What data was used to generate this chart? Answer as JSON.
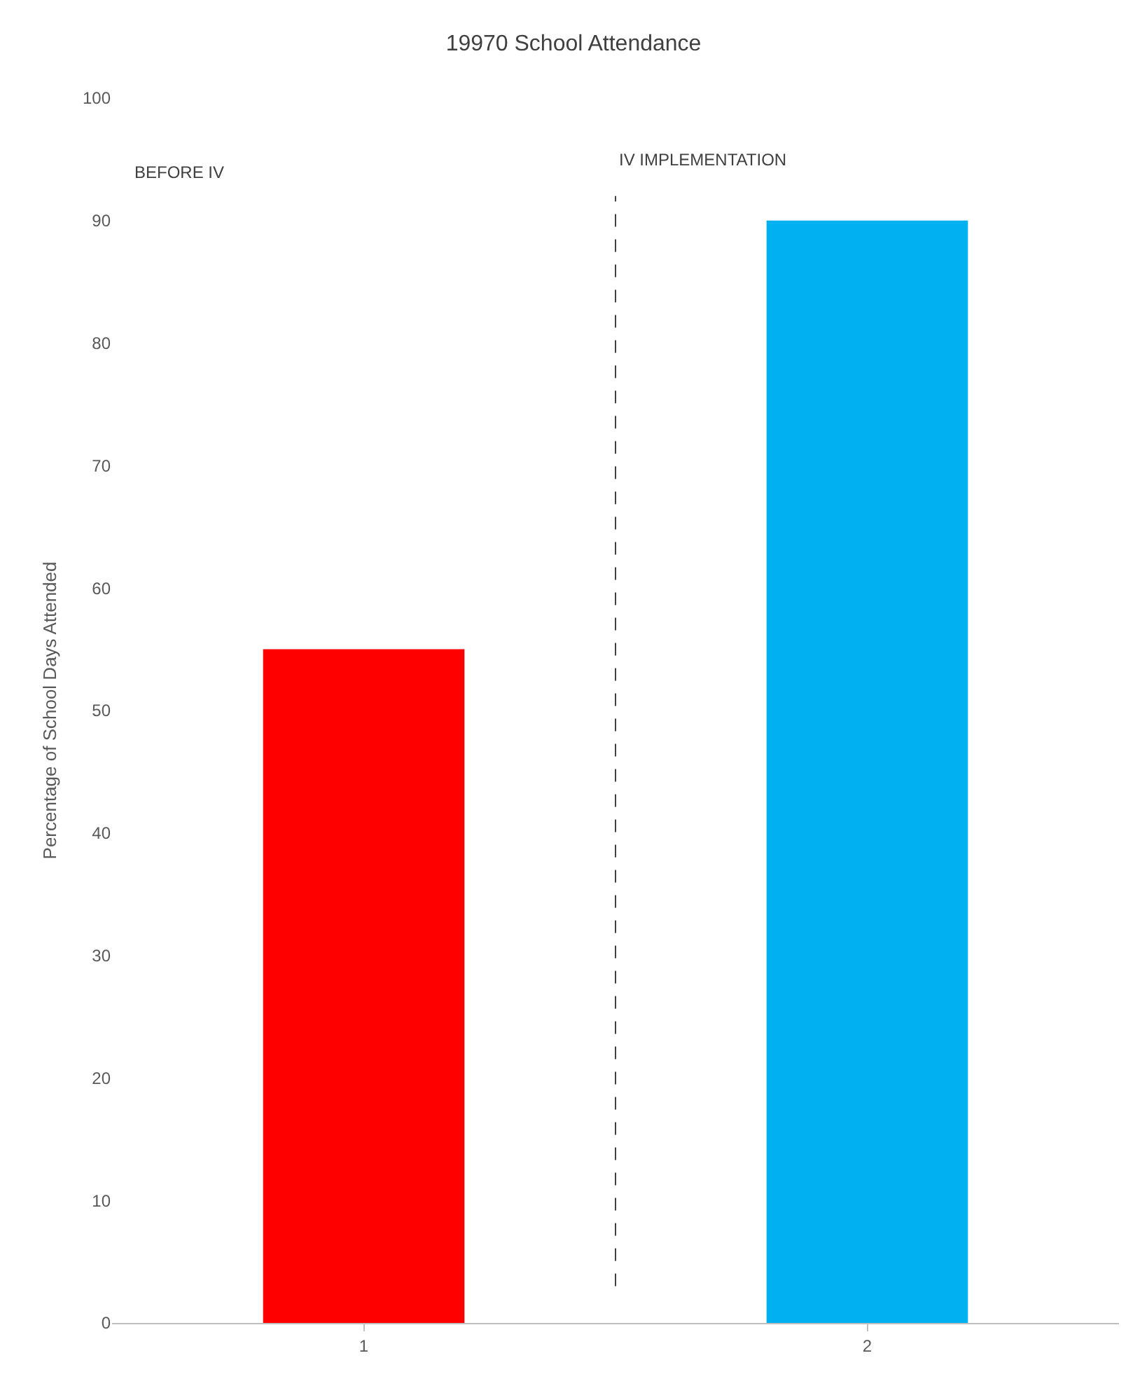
{
  "chart_data": {
    "type": "bar",
    "title": "19970 School Attendance",
    "ylabel": "Percentage of School Days Attended",
    "x": [
      1,
      2
    ],
    "xlim": [
      0.5,
      2.5
    ],
    "xticks": [
      1,
      2
    ],
    "values": [
      55,
      90
    ],
    "colors": [
      "#ff0000",
      "#00b0f0"
    ],
    "ylim": [
      0,
      100
    ],
    "yticks": [
      0,
      10,
      20,
      30,
      40,
      50,
      60,
      70,
      80,
      90,
      100
    ],
    "ref_lines": [
      {
        "axis": "x",
        "value": 1.5,
        "label": "IV IMPLEMENTATION",
        "line_style": "dashed",
        "color": "#404040"
      }
    ],
    "annotations": [
      "BEFORE IV"
    ]
  }
}
